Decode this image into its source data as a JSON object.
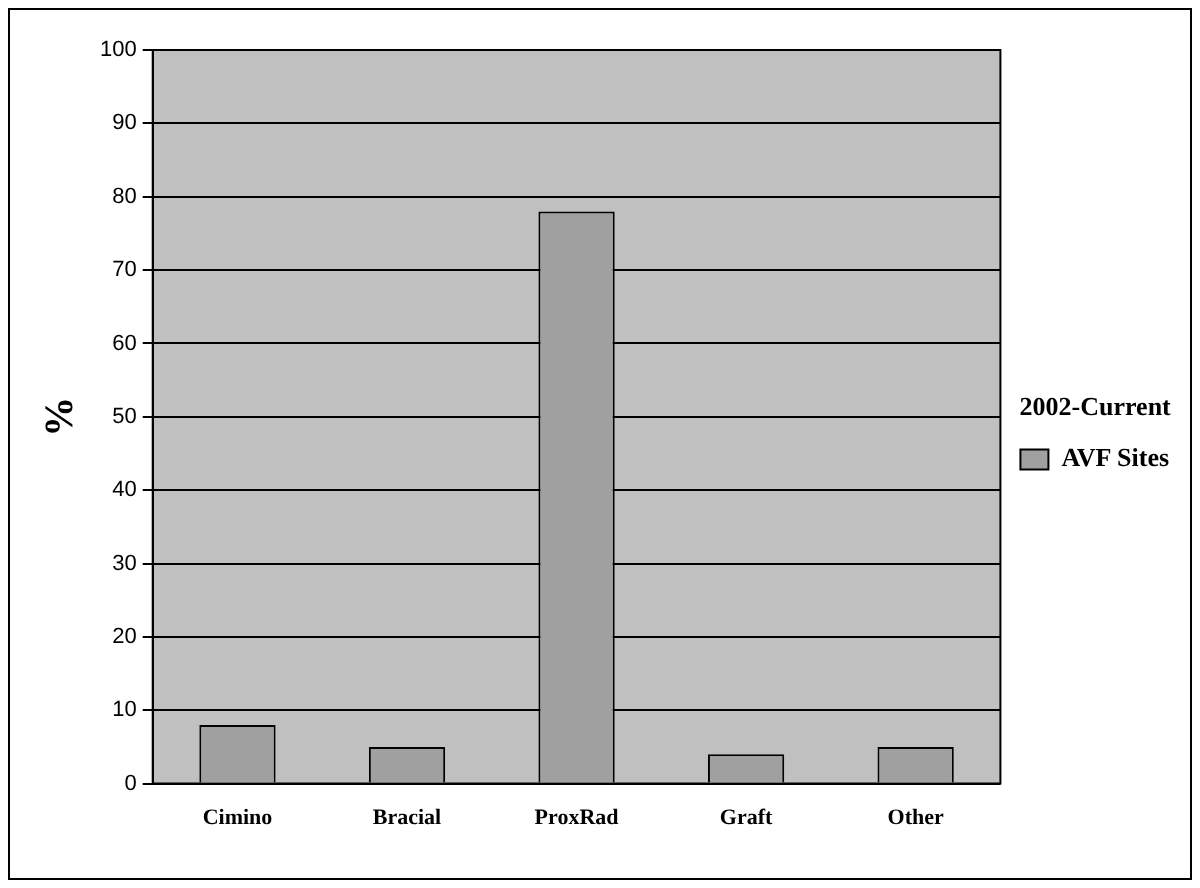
{
  "chart_data": {
    "type": "bar",
    "ylabel": "%",
    "legend_title": "2002-Current",
    "categories": [
      "Cimino",
      "Bracial",
      "ProxRad",
      "Graft",
      "Other"
    ],
    "series": [
      {
        "name": "AVF Sites",
        "color": "#a0a0a0",
        "values": [
          8,
          5,
          78,
          4,
          5
        ]
      }
    ],
    "ylim": [
      0,
      100
    ],
    "yticks": [
      0,
      10,
      20,
      30,
      40,
      50,
      60,
      70,
      80,
      90,
      100
    ],
    "grid": "y",
    "legend": "right"
  }
}
